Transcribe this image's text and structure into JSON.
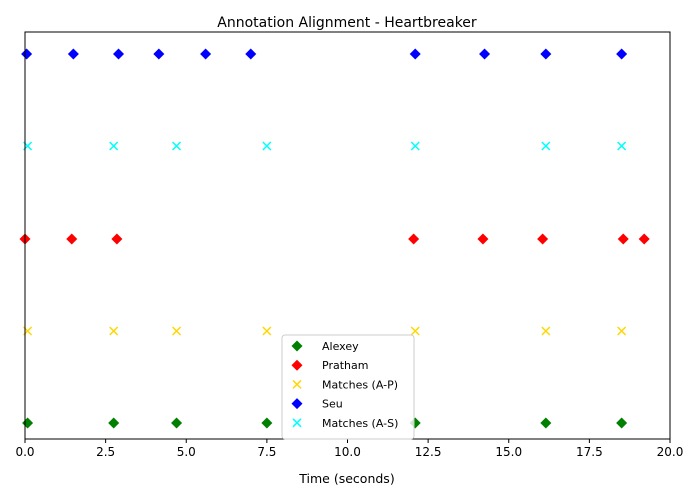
{
  "chart_data": {
    "type": "scatter",
    "title": "Annotation Alignment - Heartbreaker",
    "xlabel": "Time (seconds)",
    "ylabel": "",
    "xlim": [
      0,
      20
    ],
    "xticks": [
      0,
      2.5,
      5,
      7.5,
      10,
      12.5,
      15,
      17.5,
      20
    ],
    "xtick_labels": [
      "0.0",
      "2.5",
      "5.0",
      "7.5",
      "10.0",
      "12.5",
      "15.0",
      "17.5",
      "20.0"
    ],
    "y_visible": false,
    "grid": false,
    "legend_placement": "bottom-center",
    "series": [
      {
        "name": "Alexey",
        "marker": "diamond",
        "color": "#008000",
        "row": 0,
        "x": [
          0.08,
          2.75,
          4.7,
          7.5,
          12.1,
          16.15,
          18.5
        ]
      },
      {
        "name": "Pratham",
        "marker": "diamond",
        "color": "#ff0000",
        "row": 2,
        "x": [
          0.0,
          1.45,
          2.85,
          12.05,
          14.2,
          16.05,
          18.55,
          19.2
        ]
      },
      {
        "name": "Matches (A-P)",
        "marker": "x",
        "color": "#ffd700",
        "row": 1,
        "x": [
          0.08,
          2.75,
          4.7,
          7.5,
          12.1,
          16.15,
          18.5
        ]
      },
      {
        "name": "Seu",
        "marker": "diamond",
        "color": "#0000ff",
        "row": 4,
        "x": [
          0.05,
          1.5,
          2.9,
          4.15,
          5.6,
          7.0,
          12.1,
          14.25,
          16.15,
          18.5
        ]
      },
      {
        "name": "Matches (A-S)",
        "marker": "x",
        "color": "#00ffff",
        "row": 3,
        "x": [
          0.08,
          2.75,
          4.7,
          7.5,
          12.1,
          16.15,
          18.5
        ]
      }
    ]
  }
}
